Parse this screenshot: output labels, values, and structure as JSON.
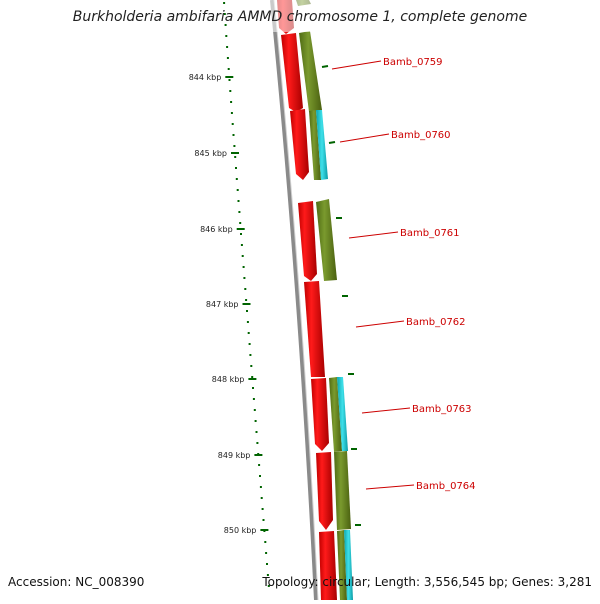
{
  "title": "Burkholderia ambifaria AMMD chromosome 1, complete genome",
  "accession": "Accession: NC_008390",
  "summary": "Topology: circular; Length: 3,556,545 bp; Genes: 3,281",
  "ruler": {
    "unit": "kbp",
    "ticks": [
      "844 kbp",
      "845 kbp",
      "846 kbp",
      "847 kbp",
      "848 kbp",
      "849 kbp",
      "850 kbp"
    ]
  },
  "genes": [
    {
      "label": "Bamb_0759"
    },
    {
      "label": "Bamb_0760"
    },
    {
      "label": "Bamb_0761"
    },
    {
      "label": "Bamb_0762"
    },
    {
      "label": "Bamb_0763"
    },
    {
      "label": "Bamb_0764"
    }
  ],
  "colors": {
    "cds": "#ff0000",
    "cds_dark": "#b80000",
    "feature_olive": "#6b8e23",
    "feature_cyan": "#1ecbd6",
    "backbone": "#8a8a8a",
    "ruler": "#006400",
    "label_text": "#cc0000",
    "label_line": "#cc0000"
  }
}
